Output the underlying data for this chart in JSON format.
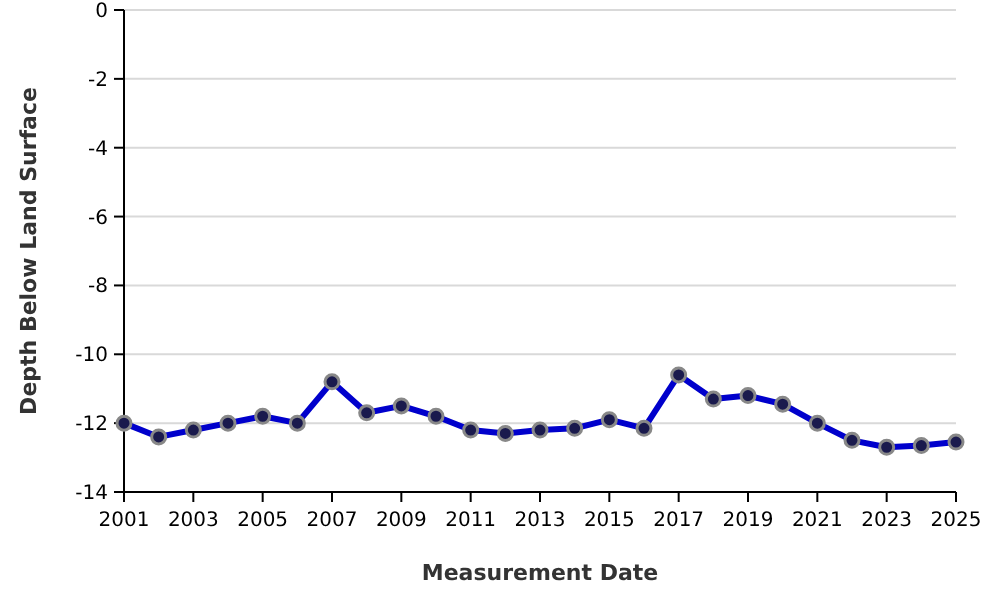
{
  "chart_data": {
    "type": "line",
    "xlabel": "Measurement Date",
    "ylabel": "Depth Below Land Surface",
    "x": [
      2001,
      2002,
      2003,
      2004,
      2005,
      2006,
      2007,
      2008,
      2009,
      2010,
      2011,
      2012,
      2013,
      2014,
      2015,
      2016,
      2017,
      2018,
      2019,
      2020,
      2021,
      2022,
      2023,
      2024,
      2025
    ],
    "series": [
      {
        "color": "#0000cc",
        "values": [
          -12.0,
          -12.4,
          -12.2,
          -12.0,
          -11.8,
          -12.0,
          -10.8,
          -11.7,
          -11.5,
          -11.8,
          -12.2,
          -12.3,
          -12.2,
          -12.15,
          -11.9,
          -12.15,
          -10.6,
          -11.3,
          -11.2,
          -11.45,
          -12.0,
          -12.5,
          -12.7,
          -12.65,
          -12.55
        ]
      }
    ],
    "xlim": [
      2001,
      2025
    ],
    "xticks": [
      2001,
      2003,
      2005,
      2007,
      2009,
      2011,
      2013,
      2015,
      2017,
      2019,
      2021,
      2023,
      2025
    ],
    "ylim": [
      -14,
      0
    ],
    "yticks": [
      -14,
      -12,
      -10,
      -8,
      -6,
      -4,
      -2,
      0
    ],
    "grid": "y",
    "marker": "circle",
    "line_style": "solid"
  }
}
